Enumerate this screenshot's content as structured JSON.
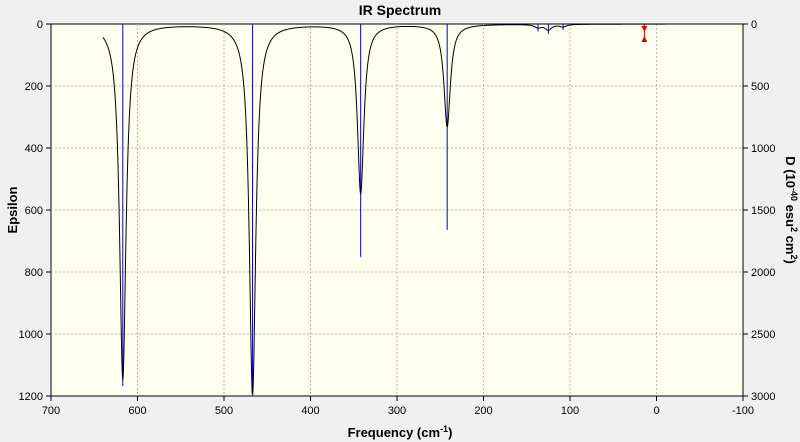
{
  "chart_data": {
    "type": "line",
    "title": "IR Spectrum",
    "xlabel": "Frequency (cm",
    "xlabel_sup": "-1",
    "xlabel_end": ")",
    "ylabel_left": "Epsilon",
    "ylabel_right_parts": [
      "D (10",
      "-40",
      " esu",
      "2",
      " cm",
      "2",
      ")"
    ],
    "xlim": [
      700,
      -100
    ],
    "ylim_left": [
      0,
      1200
    ],
    "ylim_right": [
      0,
      3000
    ],
    "x_ticks": [
      700,
      600,
      500,
      400,
      300,
      200,
      100,
      0,
      -100
    ],
    "y_ticks_left": [
      0,
      200,
      400,
      600,
      800,
      1000,
      1200
    ],
    "y_ticks_right": [
      0,
      500,
      1000,
      1500,
      2000,
      2500,
      3000
    ],
    "grid": true,
    "spectrum_range": [
      640,
      -10
    ],
    "linewidth_hwhm": 4.5,
    "peaks": [
      {
        "freq": 617,
        "epsilon": 1145
      },
      {
        "freq": 467,
        "epsilon": 1195
      },
      {
        "freq": 342,
        "epsilon": 545
      },
      {
        "freq": 242,
        "epsilon": 330
      },
      {
        "freq": 137,
        "epsilon": 10
      },
      {
        "freq": 125,
        "epsilon": 18
      },
      {
        "freq": 108,
        "epsilon": 8
      }
    ],
    "sticks": [
      {
        "freq": 617,
        "intensity": 2920
      },
      {
        "freq": 467,
        "intensity": 2960
      },
      {
        "freq": 342,
        "intensity": 1880
      },
      {
        "freq": 242,
        "intensity": 1660
      },
      {
        "freq": 137,
        "intensity": 60
      },
      {
        "freq": 125,
        "intensity": 80
      },
      {
        "freq": 108,
        "intensity": 50
      },
      {
        "freq": 14,
        "intensity": 30
      }
    ],
    "colors": {
      "spectrum": "#000000",
      "sticks": "#0000cc",
      "grid": "#b4b4b4",
      "plot_bg": "#fffff0",
      "marker": "#e00000"
    },
    "marker": {
      "freq": 14
    }
  }
}
